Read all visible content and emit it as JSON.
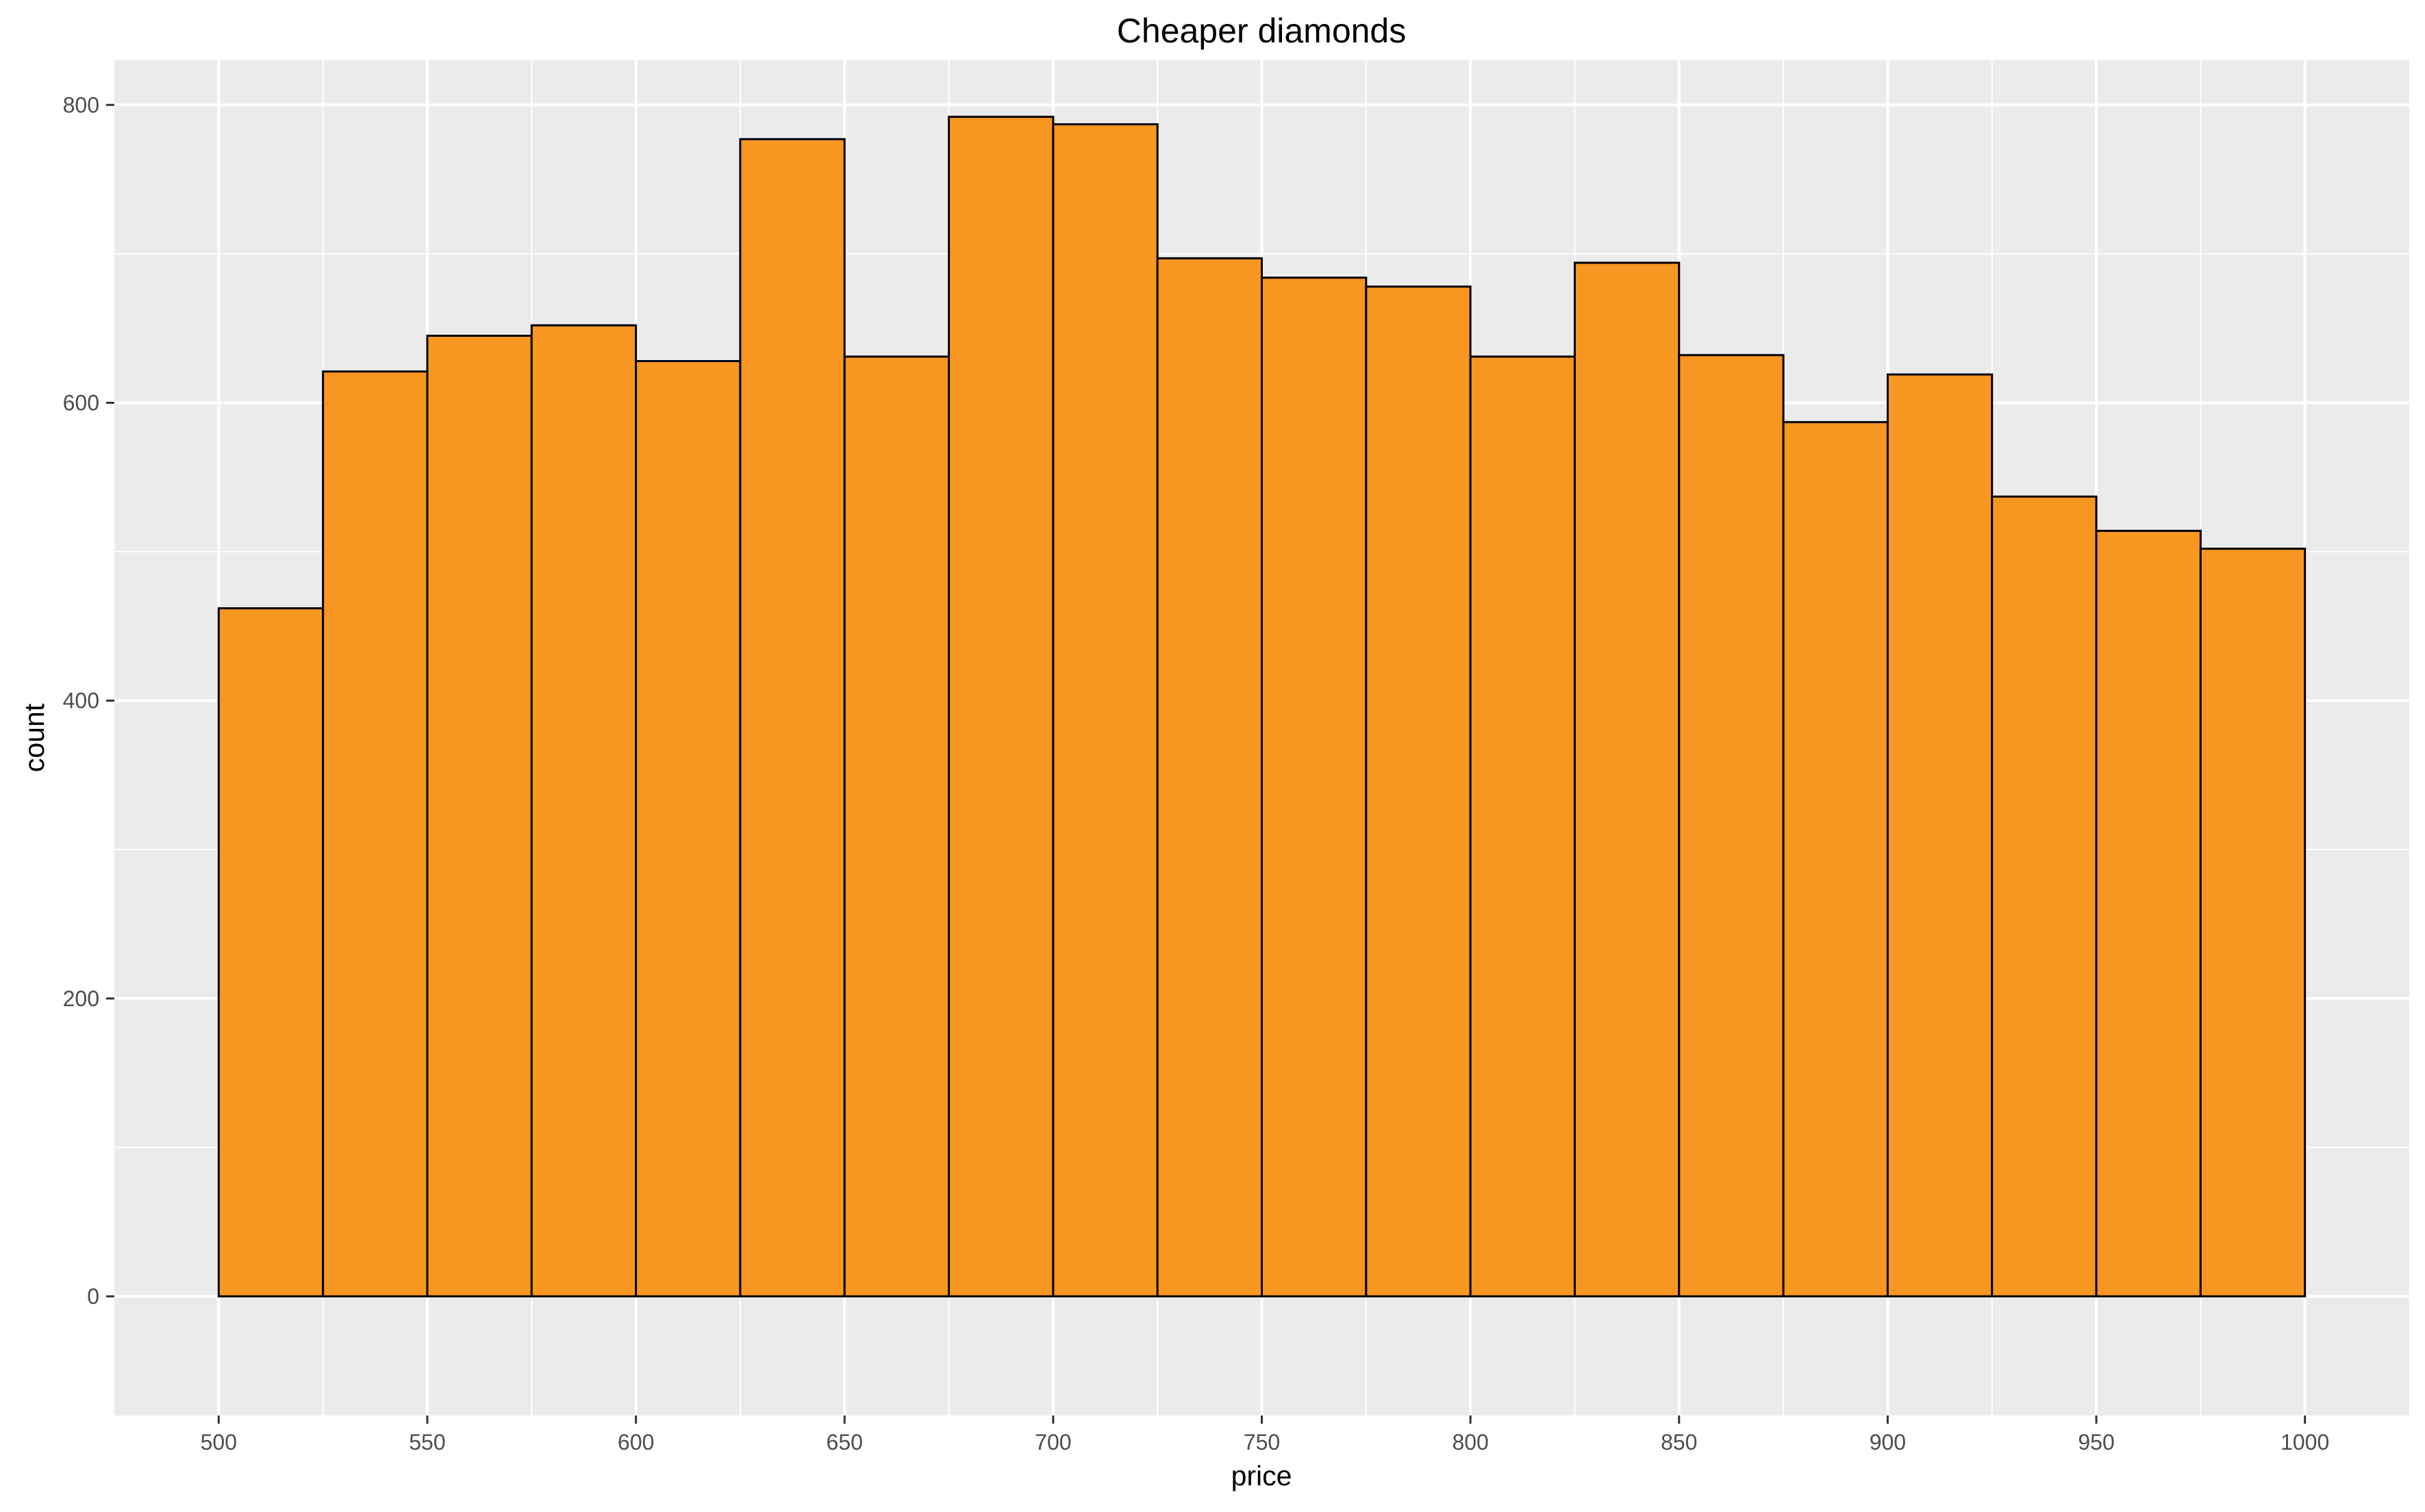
{
  "chart_data": {
    "type": "bar",
    "subtype": "histogram",
    "title": "Cheaper diamonds",
    "xlabel": "price",
    "ylabel": "count",
    "xlim": [
      475,
      1025
    ],
    "ylim": [
      -80,
      830
    ],
    "x_ticks": [
      500,
      550,
      600,
      650,
      700,
      750,
      800,
      850,
      900,
      950,
      1000
    ],
    "x_tick_labels": [
      "500",
      "550",
      "600",
      "650",
      "700",
      "750",
      "800",
      "850",
      "900",
      "950",
      "1000"
    ],
    "y_ticks": [
      0,
      200,
      400,
      600,
      800
    ],
    "y_tick_labels": [
      "0",
      "200",
      "400",
      "600",
      "800"
    ],
    "bin_width": 25,
    "bin_starts": [
      500,
      525,
      550,
      575,
      600,
      625,
      650,
      675,
      700,
      725,
      750,
      775,
      800,
      825,
      850,
      875,
      900,
      925,
      950,
      975
    ],
    "values": [
      462,
      621,
      645,
      652,
      628,
      777,
      631,
      792,
      787,
      697,
      684,
      678,
      631,
      694,
      632,
      587,
      619,
      537,
      514,
      502
    ],
    "fill_color": "#F79621",
    "outline_color": "#000000",
    "panel_background": "#EBEBEB",
    "grid": true,
    "grid_color": "#FFFFFF"
  }
}
